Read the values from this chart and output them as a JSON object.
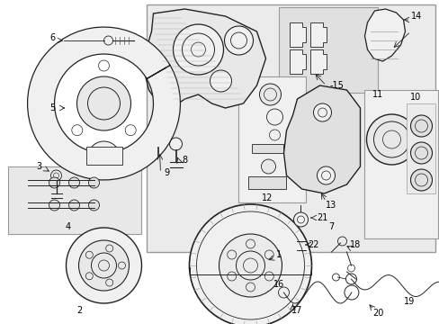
{
  "fig_width": 4.89,
  "fig_height": 3.6,
  "dpi": 100,
  "bg": "#ffffff",
  "lc": "#222222",
  "gray_bg": "#e8e8e8",
  "box_ec": "#888888"
}
